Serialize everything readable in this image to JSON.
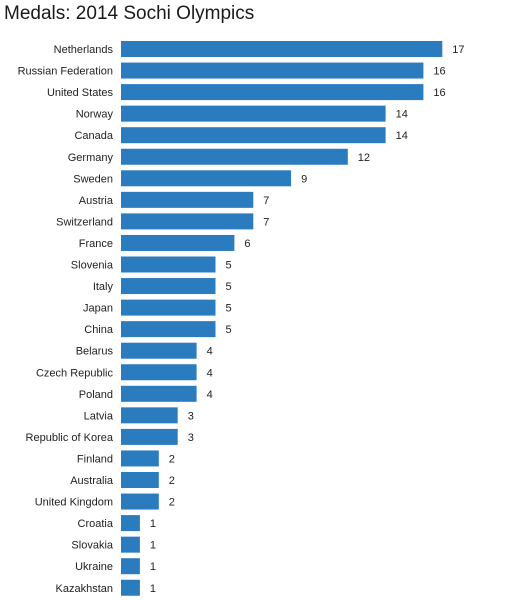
{
  "chart_data": {
    "type": "bar",
    "orientation": "horizontal",
    "title": "Medals: 2014 Sochi Olympics",
    "xlabel": "",
    "ylabel": "",
    "categories": [
      "Netherlands",
      "Russian Federation",
      "United States",
      "Norway",
      "Canada",
      "Germany",
      "Sweden",
      "Austria",
      "Switzerland",
      "France",
      "Slovenia",
      "Italy",
      "Japan",
      "China",
      "Belarus",
      "Czech Republic",
      "Poland",
      "Latvia",
      "Republic of Korea",
      "Finland",
      "Australia",
      "United Kingdom",
      "Croatia",
      "Slovakia",
      "Ukraine",
      "Kazakhstan"
    ],
    "values": [
      17,
      16,
      16,
      14,
      14,
      12,
      9,
      7,
      7,
      6,
      5,
      5,
      5,
      5,
      4,
      4,
      4,
      3,
      3,
      2,
      2,
      2,
      1,
      1,
      1,
      1
    ],
    "xlim": [
      0,
      17
    ],
    "grid": false,
    "bar_color": "#2b7bbf"
  }
}
